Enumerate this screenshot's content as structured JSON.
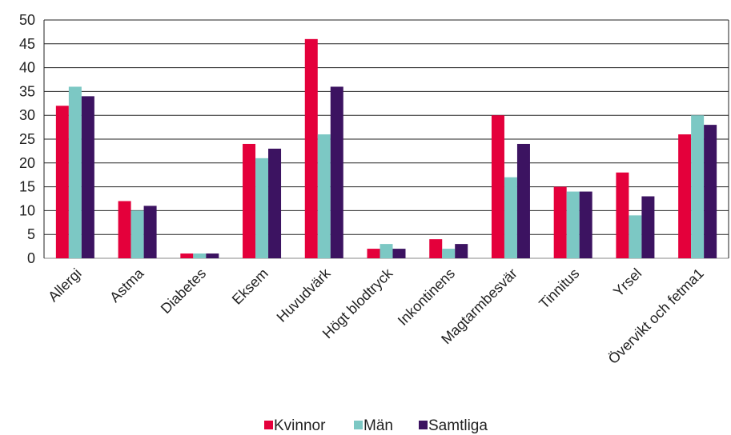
{
  "chart_data": {
    "type": "bar",
    "categories": [
      "Allergi",
      "Astma",
      "Diabetes",
      "Eksem",
      "Huvudvärk",
      "Högt blodtryck",
      "Inkontinens",
      "Magtarmbesvär",
      "Tinnitus",
      "Yrsel",
      "Övervikt och fetma1"
    ],
    "series": [
      {
        "name": "Kvinnor",
        "color": "#e4003b",
        "values": [
          32,
          12,
          1,
          24,
          46,
          2,
          4,
          30,
          15,
          18,
          26
        ]
      },
      {
        "name": "Män",
        "color": "#7cc8c4",
        "values": [
          36,
          10,
          1,
          21,
          26,
          3,
          2,
          17,
          14,
          9,
          30
        ]
      },
      {
        "name": "Samtliga",
        "color": "#3c1361",
        "values": [
          34,
          11,
          1,
          23,
          36,
          2,
          3,
          24,
          14,
          13,
          28
        ]
      }
    ],
    "ylim": [
      0,
      50
    ],
    "yticks": [
      0,
      5,
      10,
      15,
      20,
      25,
      30,
      35,
      40,
      45,
      50
    ],
    "grid": true,
    "legend_position": "bottom"
  }
}
